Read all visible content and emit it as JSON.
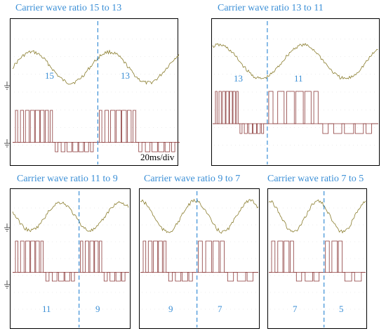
{
  "colors": {
    "title": "#3b8fd6",
    "box": "#000000",
    "grid": "#d9d9d9",
    "current_wave": "#8a7d2e",
    "pulse_wave": "#8b3a3a",
    "marker": "#3b8fd6",
    "ratio_label": "#3b8fd6",
    "ground": "#555555"
  },
  "chart_data": [
    {
      "type": "line",
      "title": "Carrier wave ratio 15 to 13",
      "ratio_before": "15",
      "ratio_after": "13",
      "scale_label": "20ms/div",
      "series": [
        {
          "values": []
        },
        {
          "values": []
        }
      ]
    },
    {
      "type": "line",
      "title": "Carrier wave ratio 13 to 11",
      "ratio_before": "13",
      "ratio_after": "11",
      "series": [
        {
          "values": []
        },
        {
          "values": []
        }
      ]
    },
    {
      "type": "line",
      "title": "Carrier wave ratio 11 to 9",
      "ratio_before": "11",
      "ratio_after": "9",
      "series": [
        {
          "values": []
        },
        {
          "values": []
        }
      ]
    },
    {
      "type": "line",
      "title": "Carrier wave ratio 9 to 7",
      "ratio_before": "9",
      "ratio_after": "7",
      "series": [
        {
          "values": []
        },
        {
          "values": []
        }
      ]
    },
    {
      "type": "line",
      "title": "Carrier wave ratio 7 to 5",
      "ratio_before": "7",
      "ratio_after": "5",
      "series": [
        {
          "values": []
        },
        {
          "values": []
        }
      ]
    }
  ]
}
